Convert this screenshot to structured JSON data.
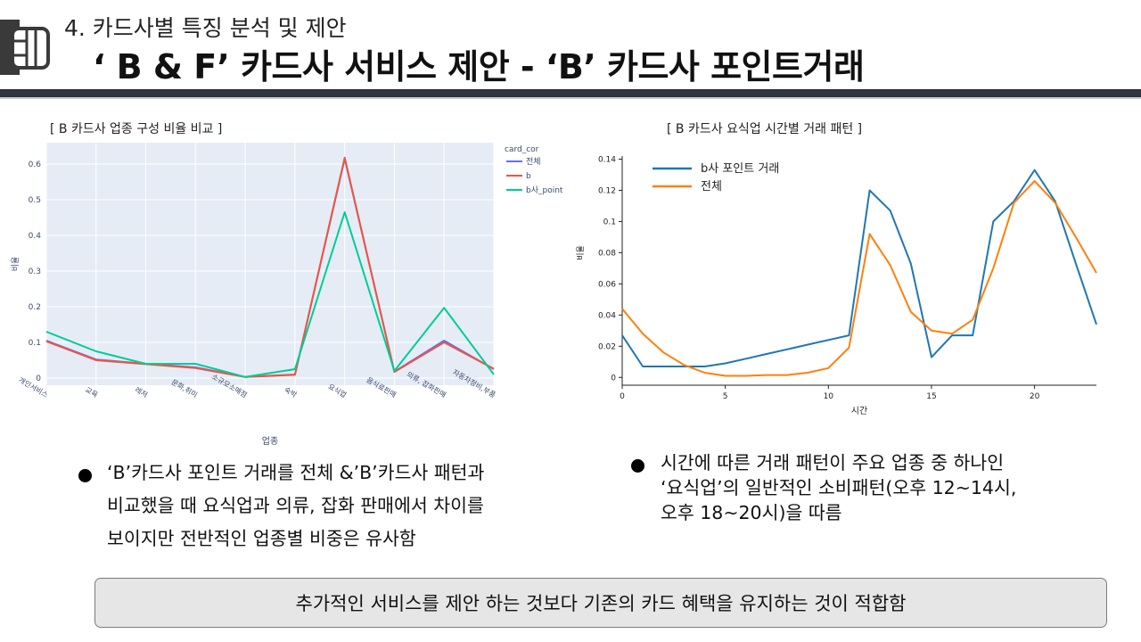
{
  "header": {
    "section_label": "4.  카드사별 특징 분석 및  제안",
    "title": "‘ B & F’ 카드사 서비스 제안 - ‘B’ 카드사 포인트거래"
  },
  "chart_data": [
    {
      "type": "line",
      "title": "[ B 카드사 업종 구성 비율 비교 ]",
      "xlabel": "업종",
      "ylabel": "비율",
      "legend_title": "card_cor",
      "legend_position": "top-right",
      "categories": [
        "개인서비스",
        "교육",
        "레저",
        "문화,취미",
        "소규모소매점",
        "숙박",
        "요식업",
        "음식료판매",
        "의류, 잡화판매",
        "자동차정비,부품"
      ],
      "ylim": [
        -0.02,
        0.66
      ],
      "yticks": [
        0,
        0.1,
        0.2,
        0.3,
        0.4,
        0.5,
        0.6
      ],
      "ytick_labels": [
        "0",
        "0.1",
        "0.2",
        "0.3",
        "0.4",
        "0.5",
        "0.6"
      ],
      "grid": true,
      "background": "#e5ecf6",
      "series": [
        {
          "name": "전체",
          "color": "#636efa",
          "values": [
            0.105,
            0.052,
            0.04,
            0.03,
            0.003,
            0.01,
            0.615,
            0.018,
            0.105,
            0.025
          ]
        },
        {
          "name": "b",
          "color": "#ef553b",
          "values": [
            0.103,
            0.05,
            0.039,
            0.028,
            0.003,
            0.009,
            0.618,
            0.017,
            0.1,
            0.026
          ]
        },
        {
          "name": "b사_point",
          "color": "#00cc96",
          "values": [
            0.13,
            0.075,
            0.04,
            0.04,
            0.003,
            0.025,
            0.465,
            0.02,
            0.197,
            0.01
          ]
        }
      ]
    },
    {
      "type": "line",
      "title": "[ B 카드사 요식업 시간별 거래 패턴 ]",
      "xlabel": "시간",
      "ylabel": "비율",
      "legend_position": "top-left",
      "x": [
        0,
        1,
        2,
        3,
        4,
        5,
        6,
        7,
        8,
        9,
        10,
        11,
        12,
        13,
        14,
        15,
        16,
        17,
        18,
        19,
        20,
        21,
        22,
        23
      ],
      "xlim": [
        0,
        23
      ],
      "ylim": [
        -0.005,
        0.142
      ],
      "xticks": [
        0,
        5,
        10,
        15,
        20
      ],
      "yticks": [
        0,
        0.02,
        0.04,
        0.06,
        0.08,
        0.1,
        0.12,
        0.14
      ],
      "ytick_labels": [
        "0",
        "0.02",
        "0.04",
        "0.06",
        "0.08",
        "0.1",
        "0.12",
        "0.14"
      ],
      "grid": false,
      "series": [
        {
          "name": "b사 포인트 거래",
          "color": "#1f77b4",
          "values": [
            0.027,
            0.007,
            0.007,
            0.007,
            0.007,
            0.009,
            0.012,
            0.015,
            0.018,
            0.021,
            0.024,
            0.027,
            0.12,
            0.107,
            0.073,
            0.013,
            0.027,
            0.027,
            0.1,
            0.113,
            0.133,
            0.113,
            0.073,
            0.034
          ]
        },
        {
          "name": "전체",
          "color": "#ff7f0e",
          "values": [
            0.044,
            0.028,
            0.016,
            0.008,
            0.003,
            0.001,
            0.001,
            0.0015,
            0.0015,
            0.003,
            0.006,
            0.019,
            0.092,
            0.072,
            0.042,
            0.03,
            0.028,
            0.037,
            0.07,
            0.112,
            0.126,
            0.112,
            0.09,
            0.067
          ]
        }
      ]
    }
  ],
  "bullets": {
    "left": [
      "‘B’카드사 포인트 거래를 전체 &’B’카드사 패턴과",
      "비교했을 때 요식업과 의류, 잡화 판매에서 차이를",
      "보이지만 전반적인 업종별 비중은 유사함"
    ],
    "right": [
      "시간에 따른 거래 패턴이 주요 업종 중 하나인",
      "‘요식업’의 일반적인 소비패턴(오후 12~14시,",
      "오후 18~20시)을 따름"
    ]
  },
  "conclusion": "추가적인 서비스를 제안 하는 것보다 기존의 카드 혜택을 유지하는 것이 적합함",
  "colors": {
    "header_bar": "#2e3440",
    "box_bg": "#e6e6e6"
  },
  "icons": {
    "logo": "card-chip-icon",
    "bullet": "bullet-dot"
  }
}
